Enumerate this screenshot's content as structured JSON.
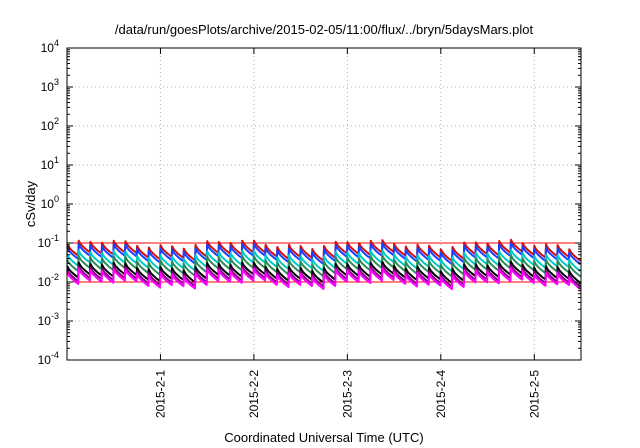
{
  "chart_data": {
    "type": "line",
    "title": "/data/run/goesPlots/archive/2015-02-05/11:00/flux/../bryn/5daysMars.plot",
    "xlabel": "Coordinated Universal Time (UTC)",
    "ylabel": "cSv/day",
    "yscale": "log",
    "ylim": [
      0.0001,
      10000
    ],
    "y_ticks": [
      {
        "base": "10",
        "exp": "-4"
      },
      {
        "base": "10",
        "exp": "-3"
      },
      {
        "base": "10",
        "exp": "-2"
      },
      {
        "base": "10",
        "exp": "-1"
      },
      {
        "base": "10",
        "exp": "0"
      },
      {
        "base": "10",
        "exp": "1"
      },
      {
        "base": "10",
        "exp": "2"
      },
      {
        "base": "10",
        "exp": "3"
      },
      {
        "base": "10",
        "exp": "4"
      }
    ],
    "x_range_days": [
      0,
      5.5
    ],
    "x_ticks": [
      {
        "label": "2015-2-1",
        "day": 1
      },
      {
        "label": "2015-2-2",
        "day": 2
      },
      {
        "label": "2015-2-3",
        "day": 3
      },
      {
        "label": "2015-2-4",
        "day": 4
      },
      {
        "label": "2015-2-5",
        "day": 5
      }
    ],
    "grid": true,
    "reference_lines": [
      {
        "y": 0.1,
        "color": "#ff0000"
      },
      {
        "y": 0.01,
        "color": "#ff0000"
      }
    ],
    "pattern": {
      "cycles": 44,
      "decay_ratio": 0.5
    },
    "series": [
      {
        "color": "#d01010",
        "peak": 0.095
      },
      {
        "color": "#1a40ff",
        "peak": 0.078
      },
      {
        "color": "#00c8c8",
        "peak": 0.052
      },
      {
        "color": "#2e8b57",
        "peak": 0.038
      },
      {
        "color": "#000000",
        "peak": 0.026
      },
      {
        "color": "#800080",
        "peak": 0.021
      },
      {
        "color": "#ff00ff",
        "peak": 0.018
      }
    ]
  }
}
